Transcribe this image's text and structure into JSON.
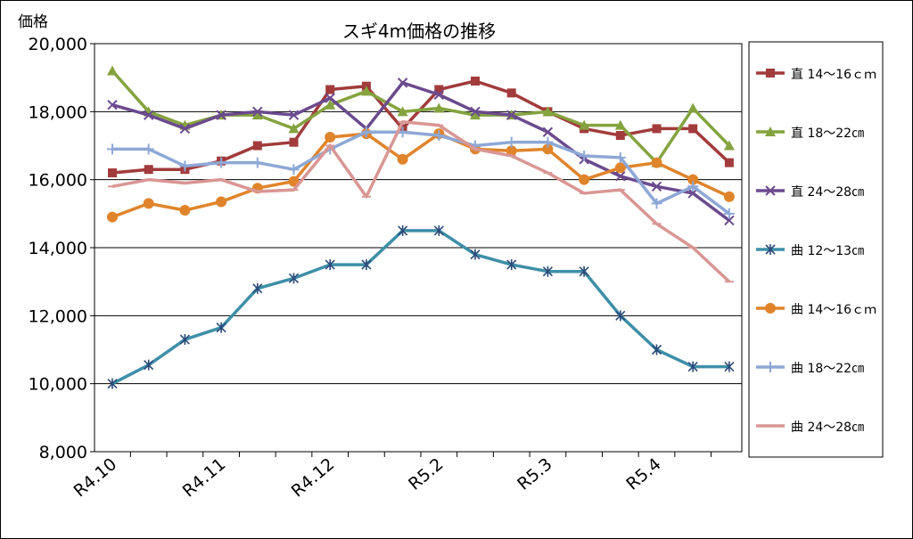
{
  "chart_data": {
    "type": "line",
    "title": "スギ4m価格の推移",
    "ylabel": "価格",
    "xlabel": "",
    "ylim": [
      8000,
      20000
    ],
    "y_ticks": [
      8000,
      10000,
      12000,
      14000,
      16000,
      18000,
      20000
    ],
    "y_tick_labels": [
      "8,000",
      "10,000",
      "12,000",
      "14,000",
      "16,000",
      "18,000",
      "20,000"
    ],
    "x_tick_labels": [
      {
        "label": "R4.10",
        "at": 0
      },
      {
        "label": "R4.11",
        "at": 3
      },
      {
        "label": "R4.12",
        "at": 6
      },
      {
        "label": "R5.2",
        "at": 9
      },
      {
        "label": "R5.3",
        "at": 12
      },
      {
        "label": "R5.4",
        "at": 15
      }
    ],
    "grid": true,
    "legend_position": "right",
    "x": [
      0,
      1,
      2,
      3,
      4,
      5,
      6,
      7,
      8,
      9,
      10,
      11,
      12,
      13,
      14,
      15,
      16,
      17
    ],
    "series": [
      {
        "name": "直 14～16ｃｍ",
        "color": "#A23B3B",
        "marker": "square",
        "values": [
          16200,
          16300,
          16300,
          16550,
          17000,
          17100,
          18650,
          18750,
          17500,
          18650,
          18900,
          18550,
          18000,
          17500,
          17300,
          17500,
          17500,
          16500
        ]
      },
      {
        "name": "直 18～22㎝",
        "color": "#84A33F",
        "marker": "triangle",
        "values": [
          19200,
          18000,
          17600,
          17900,
          17900,
          17500,
          18200,
          18600,
          18000,
          18100,
          17900,
          17900,
          18000,
          17600,
          17600,
          16500,
          18100,
          17000
        ]
      },
      {
        "name": "直 24～28㎝",
        "color": "#6B4A8E",
        "marker": "x",
        "values": [
          18200,
          17900,
          17500,
          17900,
          18000,
          17900,
          18400,
          17500,
          18850,
          18500,
          18000,
          17900,
          17400,
          16600,
          16100,
          15800,
          15600,
          14800
        ]
      },
      {
        "name": "曲 12～13㎝",
        "color": "#3E8FA8",
        "marker": "star",
        "values": [
          10000,
          10550,
          11300,
          11650,
          12800,
          13100,
          13500,
          13500,
          14500,
          14500,
          13800,
          13500,
          13300,
          13300,
          12000,
          11000,
          10500,
          10500
        ]
      },
      {
        "name": "曲 14～16ｃｍ",
        "color": "#E0842B",
        "marker": "circle",
        "values": [
          14900,
          15300,
          15100,
          15350,
          15750,
          15950,
          17250,
          17350,
          16600,
          17350,
          16900,
          16850,
          16900,
          16000,
          16350,
          16500,
          16000,
          15500
        ]
      },
      {
        "name": "曲 18～22㎝",
        "color": "#8EA8D6",
        "marker": "plus",
        "values": [
          16900,
          16900,
          16400,
          16500,
          16500,
          16300,
          16900,
          17400,
          17400,
          17300,
          17000,
          17100,
          17100,
          16700,
          16650,
          15300,
          15800,
          15000
        ]
      },
      {
        "name": "曲 24～28㎝",
        "color": "#D99694",
        "marker": "dash",
        "values": [
          15800,
          16000,
          15900,
          16000,
          15650,
          15700,
          17000,
          15500,
          17700,
          17600,
          16900,
          16700,
          16200,
          15600,
          15700,
          14700,
          14000,
          13000
        ]
      }
    ]
  }
}
